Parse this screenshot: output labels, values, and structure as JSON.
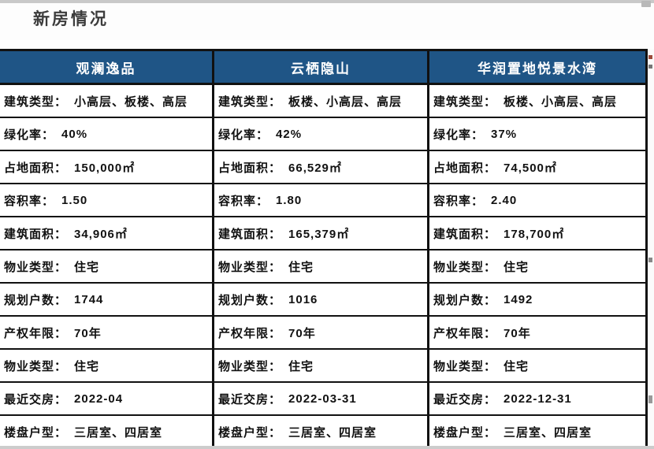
{
  "page": {
    "title": "新房情况"
  },
  "table": {
    "headers": [
      "观澜逸品",
      "云栖隐山",
      "华润置地悦景水湾"
    ],
    "rows": [
      {
        "label": "建筑类型：",
        "values": [
          "小高层、板楼、高层",
          "板楼、小高层、高层",
          "板楼、小高层、高层"
        ]
      },
      {
        "label": "绿化率：",
        "values": [
          "40%",
          "42%",
          "37%"
        ]
      },
      {
        "label": "占地面积：",
        "values": [
          "150,000㎡",
          "66,529㎡",
          "74,500㎡"
        ]
      },
      {
        "label": "容积率：",
        "values": [
          "1.50",
          "1.80",
          "2.40"
        ]
      },
      {
        "label": "建筑面积：",
        "values": [
          "34,906㎡",
          "165,379㎡",
          "178,700㎡"
        ]
      },
      {
        "label": "物业类型：",
        "values": [
          "住宅",
          "住宅",
          "住宅"
        ]
      },
      {
        "label": "规划户数：",
        "values": [
          "1744",
          "1016",
          "1492"
        ]
      },
      {
        "label": "产权年限：",
        "values": [
          "70年",
          "70年",
          "70年"
        ]
      },
      {
        "label": "物业类型：",
        "values": [
          "住宅",
          "住宅",
          "住宅"
        ]
      },
      {
        "label": "最近交房：",
        "values": [
          "2022-04",
          "2022-03-31",
          "2022-12-31"
        ]
      },
      {
        "label": "楼盘户型：",
        "values": [
          "三居室、四居室",
          "三居室、四居室",
          "三居室、四居室"
        ]
      }
    ]
  },
  "colors": {
    "header_bg": "#1f5586",
    "header_text": "#ffffff",
    "border": "#111111",
    "cell_text": "#111111"
  }
}
